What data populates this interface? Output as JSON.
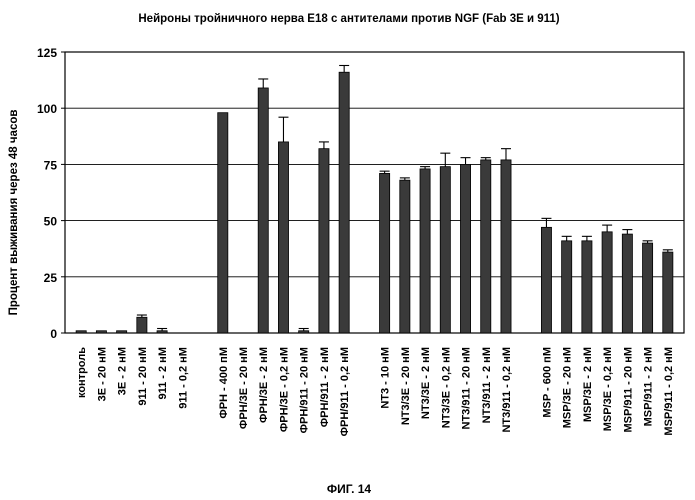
{
  "chart_data": {
    "type": "bar",
    "title": "Нейроны тройничного нерва E18 с антителами против NGF (Fab 3E и 911)",
    "xlabel": "",
    "ylabel": "Процент выживания через 48 часов",
    "ylim": [
      0,
      125
    ],
    "yticks": [
      0,
      25,
      50,
      75,
      100,
      125
    ],
    "grid": true,
    "legend": "none",
    "bar_color": "#3a3a3a",
    "categories": [
      "контроль",
      "3E - 20 нМ",
      "3E - 2 нМ",
      "911 - 20 нМ",
      "911 - 2 нМ",
      "911 - 0,2 нМ",
      "ФРН - 400 пМ",
      "ФРН/3E - 20 нМ",
      "ФРН/3E - 2 нМ",
      "ФРН/3E - 0,2 нМ",
      "ФРН/911 - 20 нМ",
      "ФРН/911 - 2 нМ",
      "ФРН/911 - 0,2 нМ",
      "NT3 - 10 нМ",
      "NT3/3E - 20 нМ",
      "NT3/3E - 2 нМ",
      "NT3/3E - 0,2 нМ",
      "NT3/911 - 20 нМ",
      "NT3/911 - 2 нМ",
      "NT3/911 - 0,2 нМ",
      "MSP - 600 пМ",
      "MSP/3E - 20 нМ",
      "MSP/3E - 2 нМ",
      "MSP/3E - 0,2 нМ",
      "MSP/911 - 20 нМ",
      "MSP/911 - 2 нМ",
      "MSP/911 - 0,2 нМ"
    ],
    "groups": [
      6,
      7,
      7,
      7
    ],
    "values": [
      1,
      1,
      1,
      7,
      1,
      0,
      98,
      0,
      109,
      85,
      1,
      82,
      116,
      71,
      68,
      73,
      74,
      75,
      77,
      77,
      47,
      41,
      41,
      45,
      44,
      40,
      36
    ],
    "errors": [
      0,
      0,
      0,
      1,
      1,
      0,
      0,
      0,
      4,
      11,
      1,
      3,
      3,
      1,
      1,
      1,
      6,
      3,
      1,
      5,
      4,
      2,
      2,
      3,
      2,
      1,
      1
    ]
  },
  "caption": "ФИГ. 14"
}
